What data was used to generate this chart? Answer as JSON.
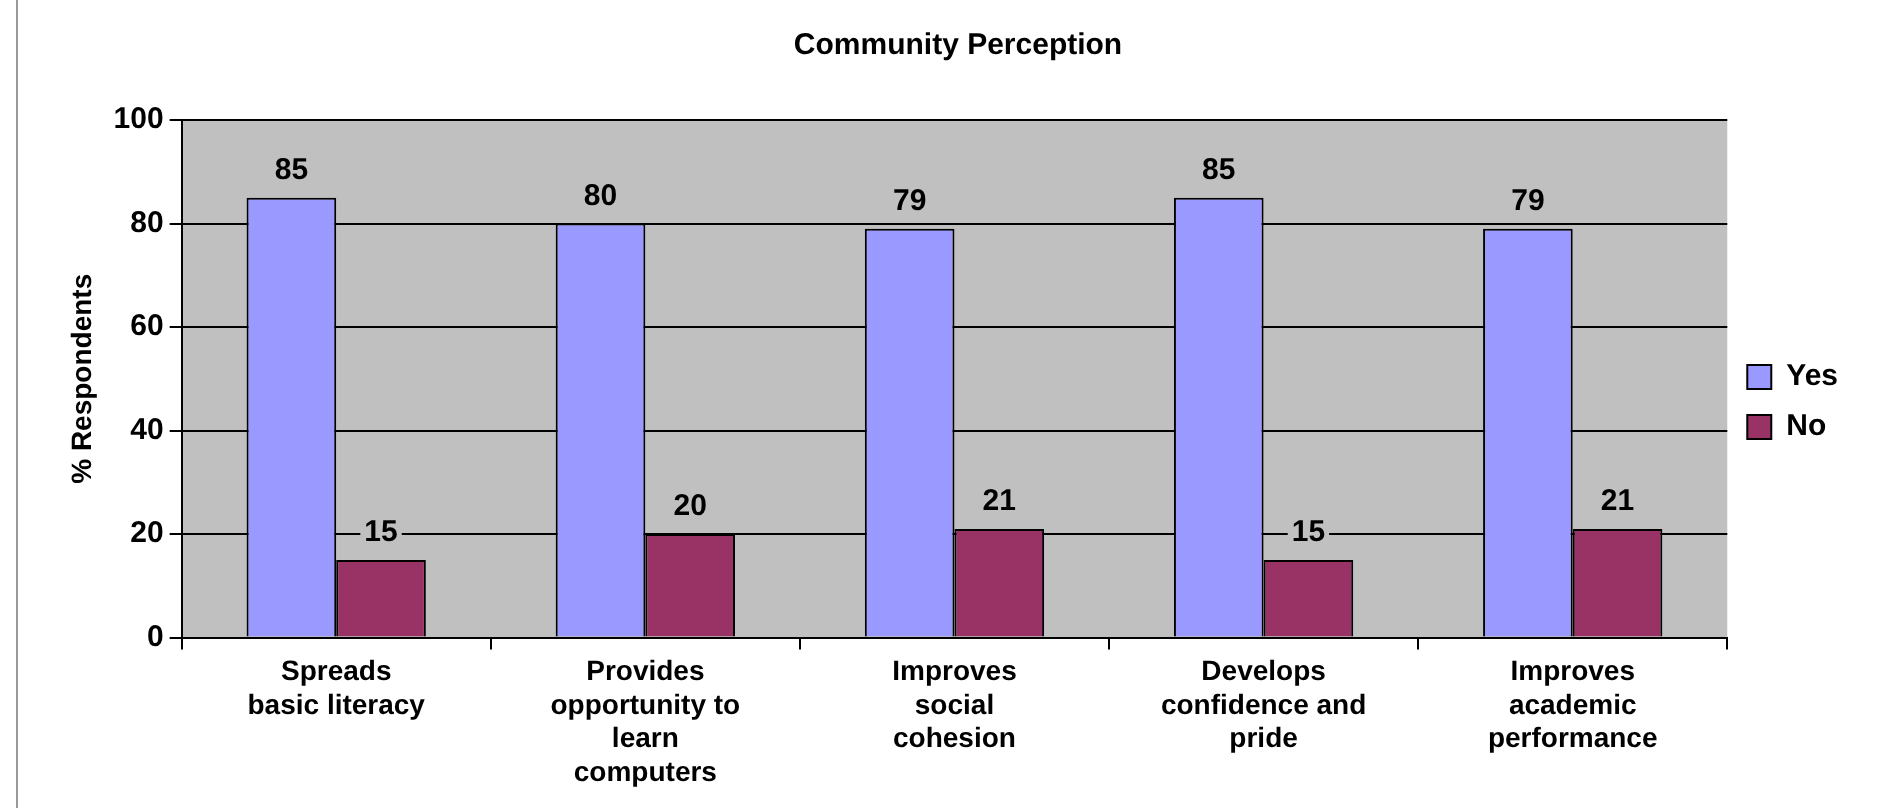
{
  "chart_data": {
    "type": "bar",
    "title": "Community Perception",
    "ylabel": "% Respondents",
    "categories": [
      "Spreads basic literacy",
      "Provides opportunity to learn computers",
      "Improves social cohesion",
      "Develops confidence and pride",
      "Improves academic performance"
    ],
    "series": [
      {
        "name": "Yes",
        "color": "#9999ff",
        "values": [
          85,
          80,
          79,
          85,
          79
        ]
      },
      {
        "name": "No",
        "color": "#993366",
        "values": [
          15,
          20,
          21,
          15,
          21
        ]
      }
    ],
    "ylim": [
      0,
      100
    ],
    "yticks": [
      0,
      20,
      40,
      60,
      80,
      100
    ],
    "grid": "y",
    "legend": "right",
    "data_labels": true
  }
}
